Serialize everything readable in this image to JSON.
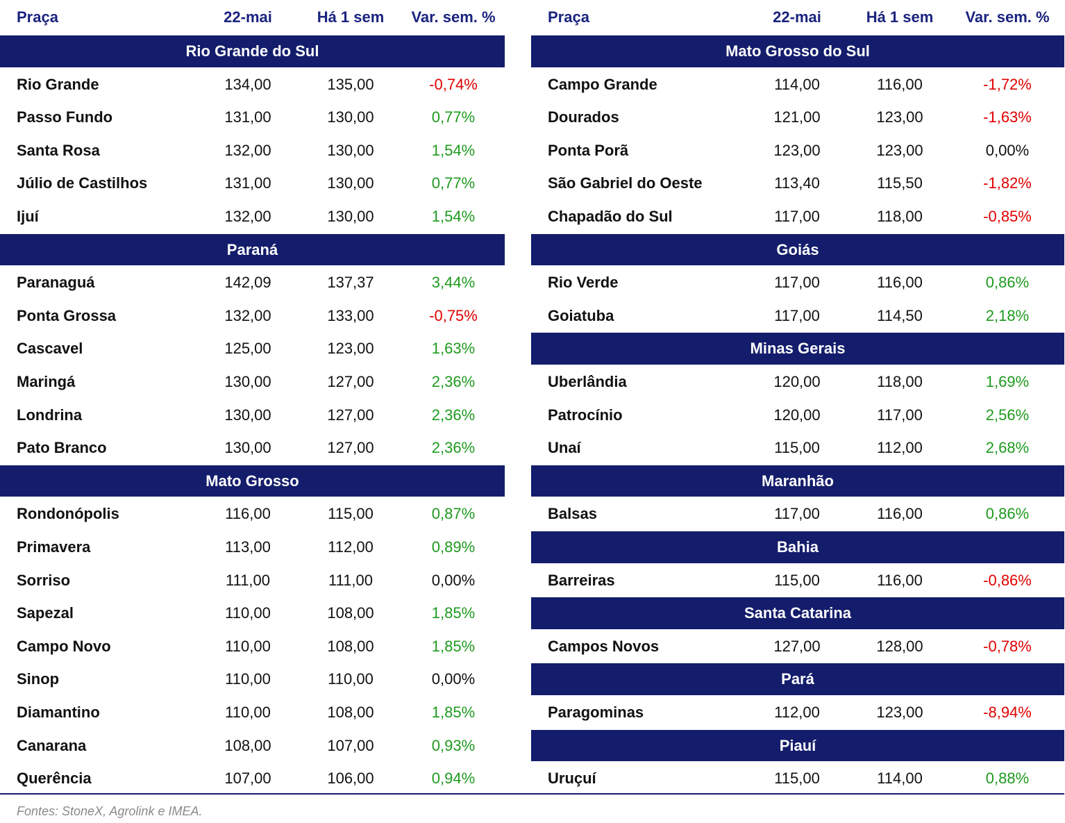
{
  "tables": [
    {
      "header": [
        "Praça",
        "22-mai",
        "Há 1 sem",
        "Var. sem. %"
      ],
      "sections": [
        {
          "title": "Rio Grande do Sul",
          "rows": [
            [
              "Rio Grande",
              "134,00",
              "135,00",
              "-0,74%"
            ],
            [
              "Passo Fundo",
              "131,00",
              "130,00",
              "0,77%"
            ],
            [
              "Santa Rosa",
              "132,00",
              "130,00",
              "1,54%"
            ],
            [
              "Júlio de Castilhos",
              "131,00",
              "130,00",
              "0,77%"
            ],
            [
              "Ijuí",
              "132,00",
              "130,00",
              "1,54%"
            ]
          ]
        },
        {
          "title": "Paraná",
          "rows": [
            [
              "Paranaguá",
              "142,09",
              "137,37",
              "3,44%"
            ],
            [
              "Ponta Grossa",
              "132,00",
              "133,00",
              "-0,75%"
            ],
            [
              "Cascavel",
              "125,00",
              "123,00",
              "1,63%"
            ],
            [
              "Maringá",
              "130,00",
              "127,00",
              "2,36%"
            ],
            [
              "Londrina",
              "130,00",
              "127,00",
              "2,36%"
            ],
            [
              "Pato Branco",
              "130,00",
              "127,00",
              "2,36%"
            ]
          ]
        },
        {
          "title": "Mato Grosso",
          "rows": [
            [
              "Rondonópolis",
              "116,00",
              "115,00",
              "0,87%"
            ],
            [
              "Primavera",
              "113,00",
              "112,00",
              "0,89%"
            ],
            [
              "Sorriso",
              "111,00",
              "111,00",
              "0,00%"
            ],
            [
              "Sapezal",
              "110,00",
              "108,00",
              "1,85%"
            ],
            [
              "Campo Novo",
              "110,00",
              "108,00",
              "1,85%"
            ],
            [
              "Sinop",
              "110,00",
              "110,00",
              "0,00%"
            ],
            [
              "Diamantino",
              "110,00",
              "108,00",
              "1,85%"
            ],
            [
              "Canarana",
              "108,00",
              "107,00",
              "0,93%"
            ],
            [
              "Querência",
              "107,00",
              "106,00",
              "0,94%"
            ]
          ]
        }
      ]
    },
    {
      "header": [
        "Praça",
        "22-mai",
        "Há 1 sem",
        "Var. sem. %"
      ],
      "sections": [
        {
          "title": "Mato Grosso do Sul",
          "rows": [
            [
              "Campo Grande",
              "114,00",
              "116,00",
              "-1,72%"
            ],
            [
              "Dourados",
              "121,00",
              "123,00",
              "-1,63%"
            ],
            [
              "Ponta Porã",
              "123,00",
              "123,00",
              "0,00%"
            ],
            [
              "São Gabriel do Oeste",
              "113,40",
              "115,50",
              "-1,82%"
            ],
            [
              "Chapadão do Sul",
              "117,00",
              "118,00",
              "-0,85%"
            ]
          ]
        },
        {
          "title": "Goiás",
          "rows": [
            [
              "Rio Verde",
              "117,00",
              "116,00",
              "0,86%"
            ],
            [
              "Goiatuba",
              "117,00",
              "114,50",
              "2,18%"
            ]
          ]
        },
        {
          "title": "Minas Gerais",
          "rows": [
            [
              "Uberlândia",
              "120,00",
              "118,00",
              "1,69%"
            ],
            [
              "Patrocínio",
              "120,00",
              "117,00",
              "2,56%"
            ],
            [
              "Unaí",
              "115,00",
              "112,00",
              "2,68%"
            ]
          ]
        },
        {
          "title": "Maranhão",
          "rows": [
            [
              "Balsas",
              "117,00",
              "116,00",
              "0,86%"
            ]
          ]
        },
        {
          "title": "Bahia",
          "rows": [
            [
              "Barreiras",
              "115,00",
              "116,00",
              "-0,86%"
            ]
          ]
        },
        {
          "title": "Santa Catarina",
          "rows": [
            [
              "Campos Novos",
              "127,00",
              "128,00",
              "-0,78%"
            ]
          ]
        },
        {
          "title": "Pará",
          "rows": [
            [
              "Paragominas",
              "112,00",
              "123,00",
              "-8,94%"
            ]
          ]
        },
        {
          "title": "Piauí",
          "rows": [
            [
              "Uruçuí",
              "115,00",
              "114,00",
              "0,88%"
            ]
          ]
        }
      ]
    }
  ],
  "footnote": "Fontes: StoneX, Agrolink e IMEA."
}
